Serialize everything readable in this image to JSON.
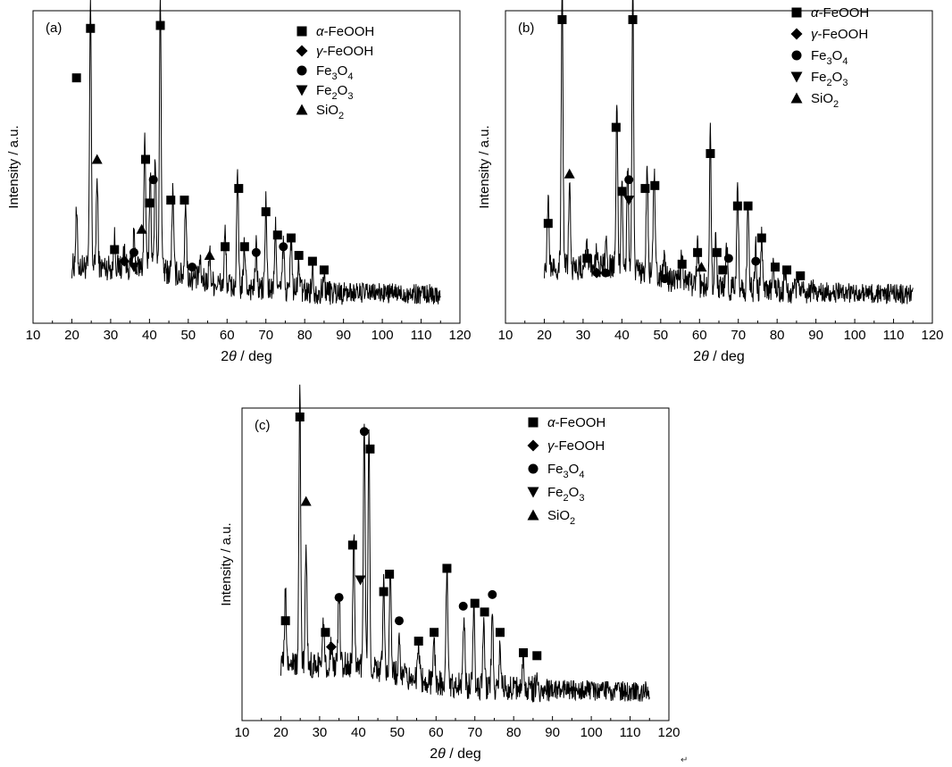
{
  "colors": {
    "axis": "#000000",
    "trace": "#000000",
    "background": "#ffffff"
  },
  "chart_data": [
    {
      "type": "line",
      "panel": "(a)",
      "xlabel": "2θ / deg",
      "ylabel": "Intensity / a.u.",
      "xlim": [
        10,
        120
      ],
      "xticks": [
        10,
        20,
        30,
        40,
        50,
        60,
        70,
        80,
        90,
        100,
        110,
        120
      ],
      "x_range": [
        20,
        115
      ],
      "legend_placement": "top-right",
      "legend": [
        {
          "symbol": "square",
          "label": "α-FeOOH"
        },
        {
          "symbol": "diamond",
          "label": "γ-FeOOH"
        },
        {
          "symbol": "circle",
          "label": "Fe3O4"
        },
        {
          "symbol": "triangle-down",
          "label": "Fe2O3"
        },
        {
          "symbol": "triangle-up",
          "label": "SiO2"
        }
      ],
      "series": [
        {
          "peaks": [
            {
              "x": 21.2,
              "y": 0.18
            },
            {
              "x": 24.8,
              "y": 0.92
            },
            {
              "x": 26.5,
              "y": 0.3
            },
            {
              "x": 31.0,
              "y": 0.1
            },
            {
              "x": 33.5,
              "y": 0.07
            },
            {
              "x": 36.0,
              "y": 0.1
            },
            {
              "x": 38.8,
              "y": 0.45
            },
            {
              "x": 40.2,
              "y": 0.34
            },
            {
              "x": 41.5,
              "y": 0.4
            },
            {
              "x": 42.8,
              "y": 0.96
            },
            {
              "x": 46.0,
              "y": 0.28
            },
            {
              "x": 49.3,
              "y": 0.27
            },
            {
              "x": 53.0,
              "y": 0.06
            },
            {
              "x": 55.5,
              "y": 0.1
            },
            {
              "x": 59.5,
              "y": 0.18
            },
            {
              "x": 62.7,
              "y": 0.38
            },
            {
              "x": 64.5,
              "y": 0.15
            },
            {
              "x": 67.5,
              "y": 0.14
            },
            {
              "x": 70.0,
              "y": 0.3
            },
            {
              "x": 72.5,
              "y": 0.22
            },
            {
              "x": 74.5,
              "y": 0.16
            },
            {
              "x": 76.5,
              "y": 0.18
            },
            {
              "x": 78.5,
              "y": 0.1
            },
            {
              "x": 82.0,
              "y": 0.08
            },
            {
              "x": 85.0,
              "y": 0.05
            }
          ]
        }
      ],
      "markers": [
        {
          "x": 21.2,
          "y": 0.8,
          "s": "square"
        },
        {
          "x": 24.8,
          "y": 0.97,
          "s": "square"
        },
        {
          "x": 26.5,
          "y": 0.52,
          "s": "triangle-up"
        },
        {
          "x": 31.0,
          "y": 0.21,
          "s": "square"
        },
        {
          "x": 33.5,
          "y": 0.17,
          "s": "diamond"
        },
        {
          "x": 36.0,
          "y": 0.15,
          "s": "triangle-down"
        },
        {
          "x": 36.0,
          "y": 0.2,
          "s": "circle"
        },
        {
          "x": 38.0,
          "y": 0.28,
          "s": "triangle-up"
        },
        {
          "x": 39.0,
          "y": 0.52,
          "s": "square"
        },
        {
          "x": 40.0,
          "y": 0.37,
          "s": "square"
        },
        {
          "x": 41.0,
          "y": 0.45,
          "s": "circle"
        },
        {
          "x": 42.8,
          "y": 0.98,
          "s": "square"
        },
        {
          "x": 45.5,
          "y": 0.38,
          "s": "square"
        },
        {
          "x": 49.0,
          "y": 0.38,
          "s": "square"
        },
        {
          "x": 51.0,
          "y": 0.15,
          "s": "circle"
        },
        {
          "x": 55.5,
          "y": 0.19,
          "s": "triangle-up"
        },
        {
          "x": 59.5,
          "y": 0.22,
          "s": "square"
        },
        {
          "x": 63.0,
          "y": 0.42,
          "s": "square"
        },
        {
          "x": 64.5,
          "y": 0.22,
          "s": "square"
        },
        {
          "x": 67.5,
          "y": 0.2,
          "s": "circle"
        },
        {
          "x": 70.0,
          "y": 0.34,
          "s": "square"
        },
        {
          "x": 73.0,
          "y": 0.26,
          "s": "square"
        },
        {
          "x": 74.5,
          "y": 0.22,
          "s": "circle"
        },
        {
          "x": 76.5,
          "y": 0.25,
          "s": "square"
        },
        {
          "x": 78.5,
          "y": 0.19,
          "s": "square"
        },
        {
          "x": 82.0,
          "y": 0.17,
          "s": "square"
        },
        {
          "x": 85.0,
          "y": 0.14,
          "s": "square"
        }
      ]
    },
    {
      "type": "line",
      "panel": "(b)",
      "xlabel": "2θ / deg",
      "ylabel": "Intensity / a.u.",
      "xlim": [
        10,
        120
      ],
      "xticks": [
        10,
        20,
        30,
        40,
        50,
        60,
        70,
        80,
        90,
        100,
        110,
        120
      ],
      "x_range": [
        20,
        115
      ],
      "legend_placement": "top-right",
      "legend": [
        {
          "symbol": "square",
          "label": "α-FeOOH"
        },
        {
          "symbol": "diamond",
          "label": "γ-FeOOH"
        },
        {
          "symbol": "circle",
          "label": "Fe3O4"
        },
        {
          "symbol": "triangle-down",
          "label": "Fe2O3"
        },
        {
          "symbol": "triangle-up",
          "label": "SiO2"
        }
      ],
      "series": [
        {
          "peaks": [
            {
              "x": 21.0,
              "y": 0.22
            },
            {
              "x": 24.6,
              "y": 0.99
            },
            {
              "x": 26.5,
              "y": 0.28
            },
            {
              "x": 31.0,
              "y": 0.1
            },
            {
              "x": 33.5,
              "y": 0.06
            },
            {
              "x": 36.0,
              "y": 0.07
            },
            {
              "x": 38.7,
              "y": 0.55
            },
            {
              "x": 40.0,
              "y": 0.32
            },
            {
              "x": 41.5,
              "y": 0.36
            },
            {
              "x": 42.8,
              "y": 0.99
            },
            {
              "x": 46.5,
              "y": 0.38
            },
            {
              "x": 48.3,
              "y": 0.36
            },
            {
              "x": 51.0,
              "y": 0.06
            },
            {
              "x": 55.5,
              "y": 0.1
            },
            {
              "x": 59.5,
              "y": 0.15
            },
            {
              "x": 62.8,
              "y": 0.52
            },
            {
              "x": 64.2,
              "y": 0.18
            },
            {
              "x": 67.0,
              "y": 0.15
            },
            {
              "x": 69.8,
              "y": 0.36
            },
            {
              "x": 72.5,
              "y": 0.32
            },
            {
              "x": 74.5,
              "y": 0.14
            },
            {
              "x": 76.0,
              "y": 0.18
            },
            {
              "x": 79.0,
              "y": 0.1
            },
            {
              "x": 82.0,
              "y": 0.08
            },
            {
              "x": 85.5,
              "y": 0.06
            }
          ]
        }
      ],
      "markers": [
        {
          "x": 21.0,
          "y": 0.3,
          "s": "square"
        },
        {
          "x": 24.6,
          "y": 1.0,
          "s": "square"
        },
        {
          "x": 26.5,
          "y": 0.47,
          "s": "triangle-up"
        },
        {
          "x": 31.0,
          "y": 0.18,
          "s": "square"
        },
        {
          "x": 33.5,
          "y": 0.13,
          "s": "diamond"
        },
        {
          "x": 35.8,
          "y": 0.13,
          "s": "circle"
        },
        {
          "x": 38.5,
          "y": 0.63,
          "s": "square"
        },
        {
          "x": 40.0,
          "y": 0.41,
          "s": "square"
        },
        {
          "x": 41.8,
          "y": 0.45,
          "s": "circle"
        },
        {
          "x": 41.8,
          "y": 0.38,
          "s": "triangle-down"
        },
        {
          "x": 42.8,
          "y": 1.0,
          "s": "square"
        },
        {
          "x": 46.0,
          "y": 0.42,
          "s": "square"
        },
        {
          "x": 48.5,
          "y": 0.43,
          "s": "square"
        },
        {
          "x": 51.0,
          "y": 0.11,
          "s": "circle"
        },
        {
          "x": 55.5,
          "y": 0.16,
          "s": "square"
        },
        {
          "x": 59.5,
          "y": 0.2,
          "s": "square"
        },
        {
          "x": 60.5,
          "y": 0.15,
          "s": "triangle-up"
        },
        {
          "x": 62.8,
          "y": 0.54,
          "s": "square"
        },
        {
          "x": 64.5,
          "y": 0.2,
          "s": "square"
        },
        {
          "x": 66.0,
          "y": 0.14,
          "s": "square"
        },
        {
          "x": 67.5,
          "y": 0.18,
          "s": "circle"
        },
        {
          "x": 69.8,
          "y": 0.36,
          "s": "square"
        },
        {
          "x": 72.5,
          "y": 0.36,
          "s": "square"
        },
        {
          "x": 74.5,
          "y": 0.17,
          "s": "circle"
        },
        {
          "x": 76.0,
          "y": 0.25,
          "s": "square"
        },
        {
          "x": 79.5,
          "y": 0.15,
          "s": "square"
        },
        {
          "x": 82.5,
          "y": 0.14,
          "s": "square"
        },
        {
          "x": 86.0,
          "y": 0.12,
          "s": "square"
        }
      ]
    },
    {
      "type": "line",
      "panel": "(c)",
      "xlabel": "2θ / deg",
      "ylabel": "Intensity / a.u.",
      "xlim": [
        10,
        120
      ],
      "xticks": [
        10,
        20,
        30,
        40,
        50,
        60,
        70,
        80,
        90,
        100,
        110,
        120
      ],
      "x_range": [
        20,
        115
      ],
      "legend_placement": "top-right",
      "legend": [
        {
          "symbol": "square",
          "label": "α-FeOOH"
        },
        {
          "symbol": "diamond",
          "label": "γ-FeOOH"
        },
        {
          "symbol": "circle",
          "label": "Fe3O4"
        },
        {
          "symbol": "triangle-down",
          "label": "Fe2O3"
        },
        {
          "symbol": "triangle-up",
          "label": "SiO2"
        }
      ],
      "series": [
        {
          "peaks": [
            {
              "x": 21.2,
              "y": 0.24
            },
            {
              "x": 24.9,
              "y": 0.94
            },
            {
              "x": 26.5,
              "y": 0.4
            },
            {
              "x": 31.0,
              "y": 0.14
            },
            {
              "x": 33.0,
              "y": 0.08
            },
            {
              "x": 35.0,
              "y": 0.28
            },
            {
              "x": 38.8,
              "y": 0.46
            },
            {
              "x": 41.5,
              "y": 0.85
            },
            {
              "x": 42.7,
              "y": 0.8
            },
            {
              "x": 46.5,
              "y": 0.3
            },
            {
              "x": 48.2,
              "y": 0.36
            },
            {
              "x": 50.5,
              "y": 0.16
            },
            {
              "x": 55.5,
              "y": 0.12
            },
            {
              "x": 59.5,
              "y": 0.14
            },
            {
              "x": 62.8,
              "y": 0.4
            },
            {
              "x": 67.2,
              "y": 0.24
            },
            {
              "x": 69.7,
              "y": 0.28
            },
            {
              "x": 72.3,
              "y": 0.22
            },
            {
              "x": 74.5,
              "y": 0.28
            },
            {
              "x": 76.5,
              "y": 0.16
            },
            {
              "x": 82.5,
              "y": 0.1
            },
            {
              "x": 86.0,
              "y": 0.06
            }
          ]
        }
      ],
      "markers": [
        {
          "x": 21.2,
          "y": 0.3,
          "s": "square"
        },
        {
          "x": 24.9,
          "y": 1.0,
          "s": "square"
        },
        {
          "x": 26.5,
          "y": 0.71,
          "s": "triangle-up"
        },
        {
          "x": 31.5,
          "y": 0.26,
          "s": "square"
        },
        {
          "x": 33.0,
          "y": 0.21,
          "s": "diamond"
        },
        {
          "x": 35.0,
          "y": 0.38,
          "s": "circle"
        },
        {
          "x": 38.5,
          "y": 0.56,
          "s": "square"
        },
        {
          "x": 40.5,
          "y": 0.44,
          "s": "triangle-down"
        },
        {
          "x": 41.5,
          "y": 0.95,
          "s": "circle"
        },
        {
          "x": 43.0,
          "y": 0.89,
          "s": "square"
        },
        {
          "x": 46.5,
          "y": 0.4,
          "s": "square"
        },
        {
          "x": 48.0,
          "y": 0.46,
          "s": "square"
        },
        {
          "x": 50.5,
          "y": 0.3,
          "s": "circle"
        },
        {
          "x": 55.5,
          "y": 0.23,
          "s": "square"
        },
        {
          "x": 59.5,
          "y": 0.26,
          "s": "square"
        },
        {
          "x": 62.8,
          "y": 0.48,
          "s": "square"
        },
        {
          "x": 67.0,
          "y": 0.35,
          "s": "circle"
        },
        {
          "x": 70.0,
          "y": 0.36,
          "s": "square"
        },
        {
          "x": 72.5,
          "y": 0.33,
          "s": "square"
        },
        {
          "x": 74.5,
          "y": 0.39,
          "s": "circle"
        },
        {
          "x": 76.5,
          "y": 0.26,
          "s": "square"
        },
        {
          "x": 82.5,
          "y": 0.19,
          "s": "square"
        },
        {
          "x": 86.0,
          "y": 0.18,
          "s": "square"
        }
      ]
    }
  ],
  "footer_mark": "↵"
}
